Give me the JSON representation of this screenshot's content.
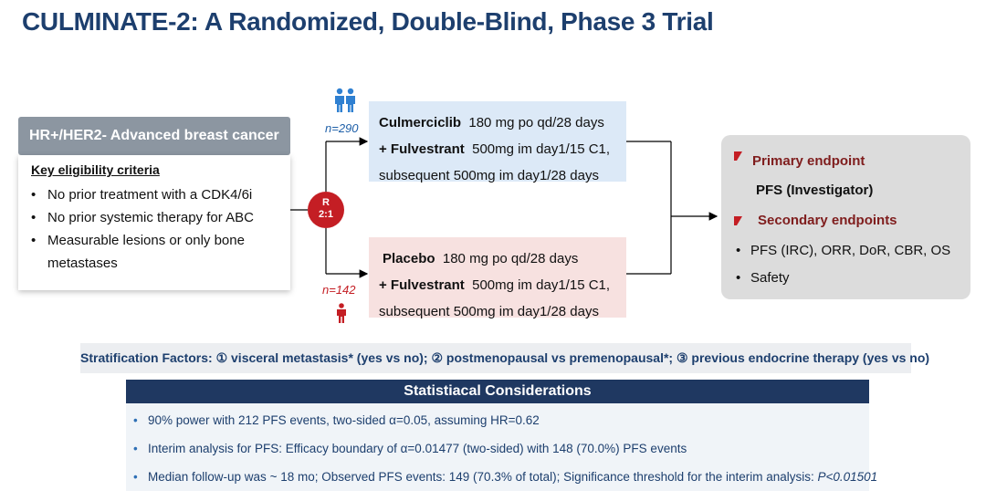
{
  "title": "CULMINATE-2: A Randomized, Double-Blind, Phase 3 Trial",
  "population": {
    "header": "HR+/HER2- Advanced breast cancer",
    "criteria_title": "Key eligibility criteria",
    "criteria": [
      "No prior treatment with a CDK4/6i",
      "No prior systemic therapy for ABC",
      "Measurable lesions or only bone",
      "metastases"
    ]
  },
  "randomization": {
    "line1": "R",
    "line2": "2:1"
  },
  "arms": [
    {
      "n": "n=290",
      "drug": "Culmerciclib",
      "dose": "180 mg po qd/28 days",
      "combo": "+ Fulvestrant",
      "combo_dose": "500mg im day1/15 C1,",
      "subsequent": "subsequent 500mg im day1/28 days",
      "icon": "two-people-icon"
    },
    {
      "n": "n=142",
      "drug": "Placebo",
      "dose": "180 mg po qd/28 days",
      "combo": "+ Fulvestrant",
      "combo_dose": "500mg im day1/15 C1,",
      "subsequent": "subsequent 500mg im day1/28 days",
      "icon": "person-icon"
    }
  ],
  "endpoints": {
    "primary_label": "Primary endpoint",
    "primary_value": "PFS (Investigator)",
    "secondary_label": "Secondary endpoints",
    "secondary_items": [
      "PFS (IRC), ORR, DoR, CBR, OS",
      "Safety"
    ]
  },
  "stratification": "Stratification Factors: ① visceral metastasis* (yes vs no); ② postmenopausal vs  premenopausal*; ③ previous endocrine therapy (yes vs no)",
  "statistical": {
    "header": "Statistiacal  Considerations",
    "items": [
      "90% power with 212 PFS events, two-sided α=0.05, assuming HR=0.62",
      "Interim analysis for PFS: Efficacy boundary of α=0.01477 (two-sided) with 148 (70.0%) PFS events",
      "Median follow-up was ~ 18 mo; Observed PFS events: 149 (70.3% of total); Significance threshold for the interim analysis: "
    ],
    "threshold": "P<0.01501"
  },
  "colors": {
    "title": "#1d3f6e",
    "randomization": "#c41e24",
    "arm1_bg": "#dce9f7",
    "arm2_bg": "#f7e1e0",
    "endpoint_label": "#7f1d1d",
    "stat_header_bg": "#1f3861"
  }
}
